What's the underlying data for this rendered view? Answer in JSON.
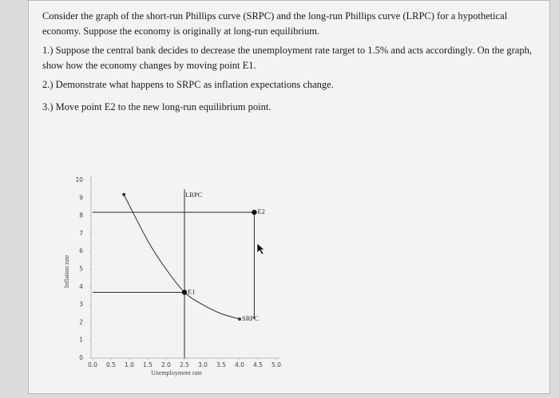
{
  "intro": "Consider the graph of the short-run Phillips curve (SRPC) and the long-run Phillips curve (LRPC) for a hypothetical economy. Suppose the economy is originally at long-run equilibrium.",
  "questions": [
    "1.) Suppose the central bank decides to decrease the unemployment rate target to 1.5% and acts accordingly. On the graph, show how the economy changes by moving point E1.",
    "2.) Demonstrate what happens to SRPC as inflation expectations change.",
    "3.) Move point E2 to the new long-run equilibrium point."
  ],
  "chart_data": {
    "type": "line",
    "x_label": "Unemployment rate",
    "y_label": "Inflation rate",
    "xlim": [
      0,
      5
    ],
    "ylim": [
      0,
      10
    ],
    "xticks": [
      {
        "value": 0,
        "label": "0.0"
      },
      {
        "value": 0.5,
        "label": "0.5"
      },
      {
        "value": 1,
        "label": "1.0"
      },
      {
        "value": 1.5,
        "label": "1.5"
      },
      {
        "value": 2,
        "label": "2.0"
      },
      {
        "value": 2.5,
        "label": "2.5"
      },
      {
        "value": 3,
        "label": "3.0"
      },
      {
        "value": 3.5,
        "label": "3.5"
      },
      {
        "value": 4,
        "label": "4.0"
      },
      {
        "value": 4.5,
        "label": "4.5"
      },
      {
        "value": 5,
        "label": "5.0"
      }
    ],
    "yticks": [
      0,
      1,
      2,
      3,
      4,
      5,
      6,
      7,
      8,
      9,
      10
    ],
    "series": [
      {
        "name": "SRPC",
        "color": "#2b2b2b",
        "x": [
          0.85,
          1.5,
          2.0,
          2.5,
          3.0,
          3.5,
          4.0
        ],
        "values": [
          9.2,
          6.6,
          5.0,
          3.7,
          3.0,
          2.5,
          2.2
        ]
      },
      {
        "name": "LRPC",
        "color": "#2b2b2b",
        "x": [
          2.5,
          2.5
        ],
        "values": [
          0,
          9.5
        ]
      }
    ],
    "points": [
      {
        "name": "E1",
        "x": 2.5,
        "y": 3.7
      },
      {
        "name": "E2",
        "x": 4.4,
        "y": 8.2
      }
    ]
  }
}
